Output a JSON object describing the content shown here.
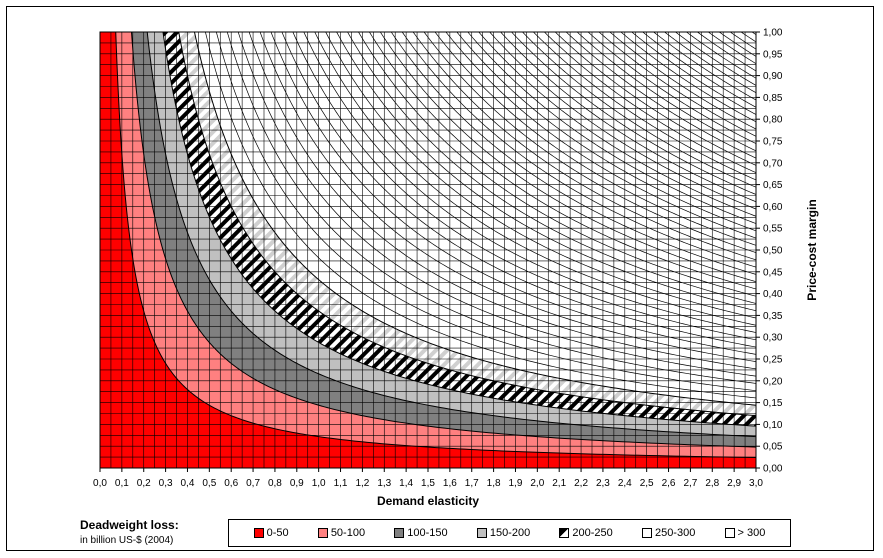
{
  "chart_data": {
    "type": "area",
    "xlabel": "Demand elasticity",
    "ylabel": "Price-cost margin",
    "xlim": [
      0.0,
      3.0
    ],
    "ylim": [
      0.0,
      1.0
    ],
    "x_ticks": [
      "0,0",
      "0,1",
      "0,2",
      "0,3",
      "0,4",
      "0,5",
      "0,6",
      "0,7",
      "0,8",
      "0,9",
      "1,0",
      "1,1",
      "1,2",
      "1,3",
      "1,4",
      "1,5",
      "1,6",
      "1,7",
      "1,8",
      "1,9",
      "2,0",
      "2,1",
      "2,2",
      "2,3",
      "2,4",
      "2,5",
      "2,6",
      "2,7",
      "2,8",
      "2,9",
      "3,0"
    ],
    "y_ticks": [
      "0,00",
      "0,05",
      "0,10",
      "0,15",
      "0,20",
      "0,25",
      "0,30",
      "0,35",
      "0,40",
      "0,45",
      "0,50",
      "0,55",
      "0,60",
      "0,65",
      "0,70",
      "0,75",
      "0,80",
      "0,85",
      "0,90",
      "0,95",
      "1,00"
    ],
    "grid": true,
    "boundaries": [
      {
        "level": 50,
        "k": 0.072
      },
      {
        "level": 100,
        "k": 0.144
      },
      {
        "level": 150,
        "k": 0.216
      },
      {
        "level": 200,
        "k": 0.288
      },
      {
        "level": 250,
        "k": 0.36
      },
      {
        "level": 300,
        "k": 0.432
      }
    ],
    "contour_spacing": 0.05,
    "legend": {
      "title": "Deadweight loss:",
      "subtitle": "in billion US-$ (2004)",
      "position": "bottom",
      "entries": [
        {
          "label": "0-50",
          "color": "#ff0000",
          "pattern": "solid"
        },
        {
          "label": "50-100",
          "color": "#ff8080",
          "pattern": "solid"
        },
        {
          "label": "100-150",
          "color": "#808080",
          "pattern": "solid"
        },
        {
          "label": "150-200",
          "color": "#c0c0c0",
          "pattern": "solid"
        },
        {
          "label": "200-250",
          "color": "#000000",
          "pattern": "stripes"
        },
        {
          "label": "250-300",
          "color": "#ffffff",
          "pattern": "light-stripes"
        },
        {
          "label": "> 300",
          "color": "#ffffff",
          "pattern": "solid"
        }
      ]
    }
  }
}
